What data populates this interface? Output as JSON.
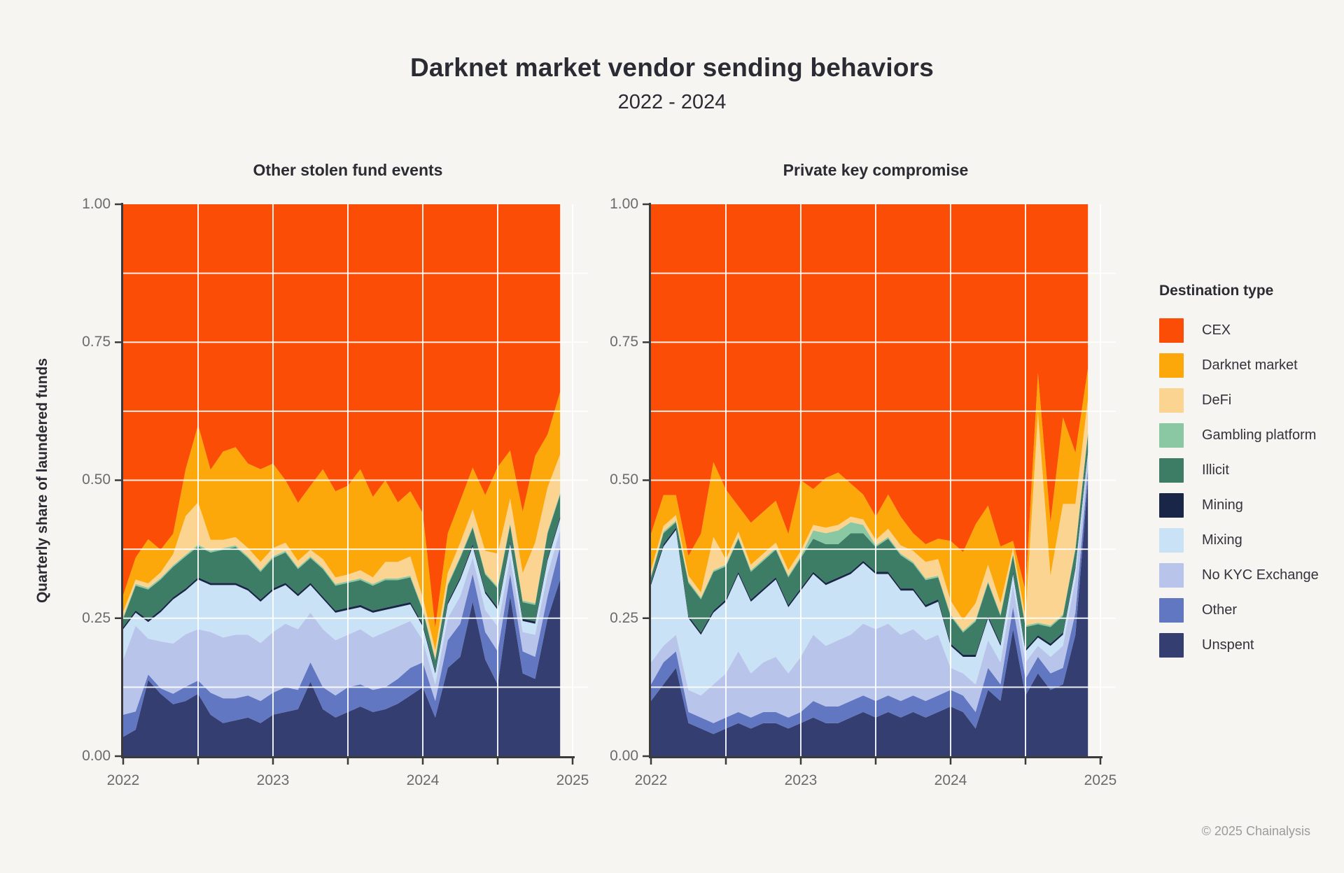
{
  "header": {
    "title": "Darknet market vendor sending behaviors",
    "subtitle": "2022 - 2024"
  },
  "y_axis_label": "Quarterly share of laundered funds",
  "attribution": "© 2025 Chainalysis",
  "legend": {
    "title": "Destination type",
    "items": [
      {
        "label": "CEX",
        "color": "#fb4d05"
      },
      {
        "label": "Darknet market",
        "color": "#fca80b"
      },
      {
        "label": "DeFi",
        "color": "#fcd491"
      },
      {
        "label": "Gambling platform",
        "color": "#8ac7a3"
      },
      {
        "label": "Illicit",
        "color": "#3d7d65"
      },
      {
        "label": "Mining",
        "color": "#1a2648"
      },
      {
        "label": "Mixing",
        "color": "#c9e2f5"
      },
      {
        "label": "No KYC Exchange",
        "color": "#b9c4ea"
      },
      {
        "label": "Other",
        "color": "#6277c2"
      },
      {
        "label": "Unspent",
        "color": "#343e71"
      }
    ]
  },
  "chart_data": [
    {
      "type": "area",
      "subtype": "stacked_share_monthly",
      "title": "Other stolen fund events",
      "x_start": "2022-01",
      "x_end": "2024-12",
      "x_tick_labels": [
        "2022",
        "2023",
        "2024",
        "2025"
      ],
      "y_tick_labels": [
        "1.00",
        "0.75",
        "0.50",
        "0.25",
        "0.00"
      ],
      "ylim": [
        0,
        1
      ],
      "grid": "on",
      "series": [
        {
          "name": "CEX",
          "values": [
            0.708,
            0.64,
            0.607,
            0.626,
            0.597,
            0.48,
            0.4,
            0.481,
            0.448,
            0.44,
            0.47,
            0.48,
            0.47,
            0.5,
            0.541,
            0.51,
            0.48,
            0.52,
            0.51,
            0.48,
            0.53,
            0.5,
            0.54,
            0.52,
            0.56,
            0.767,
            0.596,
            0.537,
            0.477,
            0.527,
            0.476,
            0.446,
            0.557,
            0.456,
            0.417,
            0.34
          ]
        },
        {
          "name": "Darknet market",
          "values": [
            0.03,
            0.04,
            0.08,
            0.041,
            0.037,
            0.085,
            0.14,
            0.127,
            0.16,
            0.163,
            0.153,
            0.168,
            0.153,
            0.113,
            0.105,
            0.116,
            0.163,
            0.156,
            0.161,
            0.183,
            0.146,
            0.148,
            0.108,
            0.118,
            0.153,
            0.041,
            0.072,
            0.076,
            0.076,
            0.101,
            0.157,
            0.087,
            0.111,
            0.157,
            0.096,
            0.113
          ]
        },
        {
          "name": "DeFi",
          "values": [
            0.01,
            0.008,
            0.008,
            0.01,
            0.02,
            0.07,
            0.077,
            0.02,
            0.015,
            0.015,
            0.015,
            0.015,
            0.015,
            0.015,
            0.012,
            0.012,
            0.015,
            0.012,
            0.012,
            0.015,
            0.012,
            0.03,
            0.03,
            0.035,
            0.02,
            0.015,
            0.02,
            0.025,
            0.03,
            0.04,
            0.06,
            0.045,
            0.05,
            0.11,
            0.08,
            0.07
          ]
        },
        {
          "name": "Gambling platform",
          "values": [
            0.003,
            0.003,
            0.003,
            0.003,
            0.003,
            0.003,
            0.003,
            0.003,
            0.003,
            0.003,
            0.003,
            0.003,
            0.003,
            0.003,
            0.003,
            0.003,
            0.003,
            0.003,
            0.003,
            0.003,
            0.003,
            0.003,
            0.003,
            0.003,
            0.003,
            0.003,
            0.003,
            0.003,
            0.003,
            0.003,
            0.003,
            0.003,
            0.003,
            0.003,
            0.003,
            0.003
          ]
        },
        {
          "name": "Illicit",
          "values": [
            0.015,
            0.045,
            0.055,
            0.055,
            0.055,
            0.058,
            0.056,
            0.055,
            0.06,
            0.065,
            0.055,
            0.05,
            0.055,
            0.055,
            0.045,
            0.045,
            0.05,
            0.045,
            0.045,
            0.045,
            0.045,
            0.05,
            0.045,
            0.045,
            0.025,
            0.02,
            0.03,
            0.035,
            0.03,
            0.03,
            0.035,
            0.03,
            0.03,
            0.03,
            0.045,
            0.04
          ]
        },
        {
          "name": "Mining",
          "values": [
            0.004,
            0.004,
            0.004,
            0.004,
            0.004,
            0.004,
            0.004,
            0.004,
            0.004,
            0.004,
            0.004,
            0.004,
            0.004,
            0.004,
            0.004,
            0.004,
            0.004,
            0.004,
            0.004,
            0.004,
            0.004,
            0.004,
            0.004,
            0.004,
            0.004,
            0.004,
            0.004,
            0.004,
            0.004,
            0.004,
            0.004,
            0.004,
            0.004,
            0.004,
            0.004,
            0.004
          ]
        },
        {
          "name": "Mixing",
          "values": [
            0.055,
            0.024,
            0.03,
            0.053,
            0.08,
            0.079,
            0.09,
            0.085,
            0.095,
            0.09,
            0.08,
            0.075,
            0.075,
            0.07,
            0.06,
            0.05,
            0.055,
            0.05,
            0.045,
            0.04,
            0.045,
            0.04,
            0.035,
            0.03,
            0.025,
            0.02,
            0.025,
            0.03,
            0.02,
            0.03,
            0.03,
            0.025,
            0.02,
            0.02,
            0.025,
            0.02
          ]
        },
        {
          "name": "No KYC Exchange",
          "values": [
            0.1,
            0.155,
            0.065,
            0.085,
            0.091,
            0.095,
            0.093,
            0.11,
            0.11,
            0.115,
            0.11,
            0.105,
            0.11,
            0.115,
            0.11,
            0.09,
            0.105,
            0.1,
            0.095,
            0.1,
            0.095,
            0.1,
            0.095,
            0.085,
            0.04,
            0.03,
            0.04,
            0.05,
            0.03,
            0.04,
            0.045,
            0.03,
            0.035,
            0.04,
            0.04,
            0.03
          ]
        },
        {
          "name": "Other",
          "values": [
            0.04,
            0.033,
            0.01,
            0.01,
            0.019,
            0.026,
            0.024,
            0.04,
            0.045,
            0.04,
            0.04,
            0.04,
            0.04,
            0.045,
            0.035,
            0.035,
            0.04,
            0.04,
            0.045,
            0.04,
            0.04,
            0.04,
            0.045,
            0.05,
            0.045,
            0.03,
            0.05,
            0.06,
            0.05,
            0.05,
            0.06,
            0.04,
            0.04,
            0.04,
            0.04,
            0.06
          ]
        },
        {
          "name": "Unspent",
          "values": [
            0.035,
            0.048,
            0.138,
            0.113,
            0.094,
            0.1,
            0.113,
            0.075,
            0.06,
            0.065,
            0.07,
            0.06,
            0.075,
            0.08,
            0.085,
            0.135,
            0.085,
            0.07,
            0.08,
            0.09,
            0.08,
            0.085,
            0.095,
            0.11,
            0.125,
            0.07,
            0.16,
            0.18,
            0.28,
            0.175,
            0.13,
            0.29,
            0.15,
            0.14,
            0.25,
            0.32
          ]
        }
      ]
    },
    {
      "type": "area",
      "subtype": "stacked_share_monthly",
      "title": "Private key compromise",
      "x_start": "2022-01",
      "x_end": "2024-12",
      "x_tick_labels": [
        "2022",
        "2023",
        "2024",
        "2025"
      ],
      "y_tick_labels": [
        "1.00",
        "0.75",
        "0.50",
        "0.25",
        "0.00"
      ],
      "ylim": [
        0,
        1
      ],
      "grid": "on",
      "series": [
        {
          "name": "CEX",
          "values": [
            0.597,
            0.527,
            0.527,
            0.637,
            0.597,
            0.467,
            0.517,
            0.547,
            0.577,
            0.557,
            0.537,
            0.597,
            0.5,
            0.516,
            0.496,
            0.486,
            0.506,
            0.526,
            0.566,
            0.526,
            0.566,
            0.596,
            0.616,
            0.606,
            0.61,
            0.63,
            0.58,
            0.546,
            0.62,
            0.61,
            0.7,
            0.306,
            0.576,
            0.386,
            0.45,
            0.297
          ]
        },
        {
          "name": "Darknet market",
          "values": [
            0.066,
            0.056,
            0.036,
            0.036,
            0.106,
            0.136,
            0.126,
            0.046,
            0.076,
            0.076,
            0.076,
            0.066,
            0.128,
            0.065,
            0.09,
            0.095,
            0.06,
            0.045,
            0.042,
            0.062,
            0.052,
            0.032,
            0.032,
            0.037,
            0.108,
            0.123,
            0.143,
            0.107,
            0.103,
            0.013,
            0.048,
            0.072,
            0.097,
            0.157,
            0.093,
            0.056
          ]
        },
        {
          "name": "DeFi",
          "values": [
            0.01,
            0.01,
            0.01,
            0.01,
            0.01,
            0.06,
            0.01,
            0.01,
            0.01,
            0.01,
            0.01,
            0.01,
            0.01,
            0.01,
            0.01,
            0.01,
            0.01,
            0.01,
            0.01,
            0.015,
            0.015,
            0.02,
            0.03,
            0.03,
            0.025,
            0.02,
            0.03,
            0.03,
            0.02,
            0.01,
            0.015,
            0.38,
            0.09,
            0.2,
            0.08,
            0.06
          ]
        },
        {
          "name": "Gambling platform",
          "values": [
            0.003,
            0.003,
            0.003,
            0.003,
            0.003,
            0.003,
            0.003,
            0.003,
            0.003,
            0.003,
            0.003,
            0.003,
            0.003,
            0.015,
            0.02,
            0.025,
            0.02,
            0.015,
            0.003,
            0.003,
            0.003,
            0.003,
            0.003,
            0.003,
            0.003,
            0.003,
            0.003,
            0.003,
            0.003,
            0.003,
            0.003,
            0.003,
            0.003,
            0.003,
            0.003,
            0.003
          ]
        },
        {
          "name": "Illicit",
          "values": [
            0.01,
            0.02,
            0.01,
            0.06,
            0.06,
            0.07,
            0.06,
            0.06,
            0.05,
            0.05,
            0.05,
            0.05,
            0.055,
            0.06,
            0.07,
            0.06,
            0.07,
            0.05,
            0.045,
            0.06,
            0.06,
            0.045,
            0.045,
            0.04,
            0.05,
            0.04,
            0.06,
            0.06,
            0.05,
            0.03,
            0.04,
            0.02,
            0.03,
            0.03,
            0.03,
            0.03
          ]
        },
        {
          "name": "Mining",
          "values": [
            0.004,
            0.004,
            0.004,
            0.004,
            0.004,
            0.004,
            0.004,
            0.004,
            0.004,
            0.004,
            0.004,
            0.004,
            0.004,
            0.004,
            0.004,
            0.004,
            0.004,
            0.004,
            0.004,
            0.004,
            0.004,
            0.004,
            0.004,
            0.004,
            0.004,
            0.004,
            0.004,
            0.004,
            0.004,
            0.004,
            0.004,
            0.004,
            0.004,
            0.004,
            0.004,
            0.004
          ]
        },
        {
          "name": "Mixing",
          "values": [
            0.14,
            0.18,
            0.19,
            0.13,
            0.11,
            0.13,
            0.13,
            0.14,
            0.13,
            0.13,
            0.14,
            0.12,
            0.12,
            0.11,
            0.11,
            0.11,
            0.11,
            0.11,
            0.1,
            0.09,
            0.08,
            0.07,
            0.06,
            0.06,
            0.04,
            0.03,
            0.05,
            0.04,
            0.03,
            0.02,
            0.02,
            0.015,
            0.02,
            0.02,
            0.02,
            0.01
          ]
        },
        {
          "name": "No KYC Exchange",
          "values": [
            0.04,
            0.03,
            0.03,
            0.04,
            0.04,
            0.07,
            0.08,
            0.11,
            0.08,
            0.09,
            0.1,
            0.08,
            0.1,
            0.12,
            0.11,
            0.12,
            0.12,
            0.13,
            0.13,
            0.13,
            0.12,
            0.12,
            0.11,
            0.11,
            0.04,
            0.04,
            0.05,
            0.05,
            0.04,
            0.04,
            0.03,
            0.02,
            0.03,
            0.04,
            0.06,
            0.02
          ]
        },
        {
          "name": "Other",
          "values": [
            0.03,
            0.04,
            0.03,
            0.02,
            0.02,
            0.02,
            0.02,
            0.02,
            0.02,
            0.02,
            0.02,
            0.02,
            0.02,
            0.03,
            0.03,
            0.03,
            0.03,
            0.03,
            0.03,
            0.03,
            0.03,
            0.03,
            0.03,
            0.03,
            0.03,
            0.03,
            0.03,
            0.04,
            0.03,
            0.04,
            0.03,
            0.03,
            0.03,
            0.03,
            0.04,
            0.02
          ]
        },
        {
          "name": "Unspent",
          "values": [
            0.1,
            0.13,
            0.16,
            0.06,
            0.05,
            0.04,
            0.05,
            0.06,
            0.05,
            0.06,
            0.06,
            0.05,
            0.06,
            0.07,
            0.06,
            0.06,
            0.07,
            0.08,
            0.07,
            0.08,
            0.07,
            0.08,
            0.07,
            0.08,
            0.09,
            0.08,
            0.05,
            0.12,
            0.1,
            0.23,
            0.11,
            0.15,
            0.12,
            0.13,
            0.22,
            0.5
          ]
        }
      ]
    }
  ]
}
